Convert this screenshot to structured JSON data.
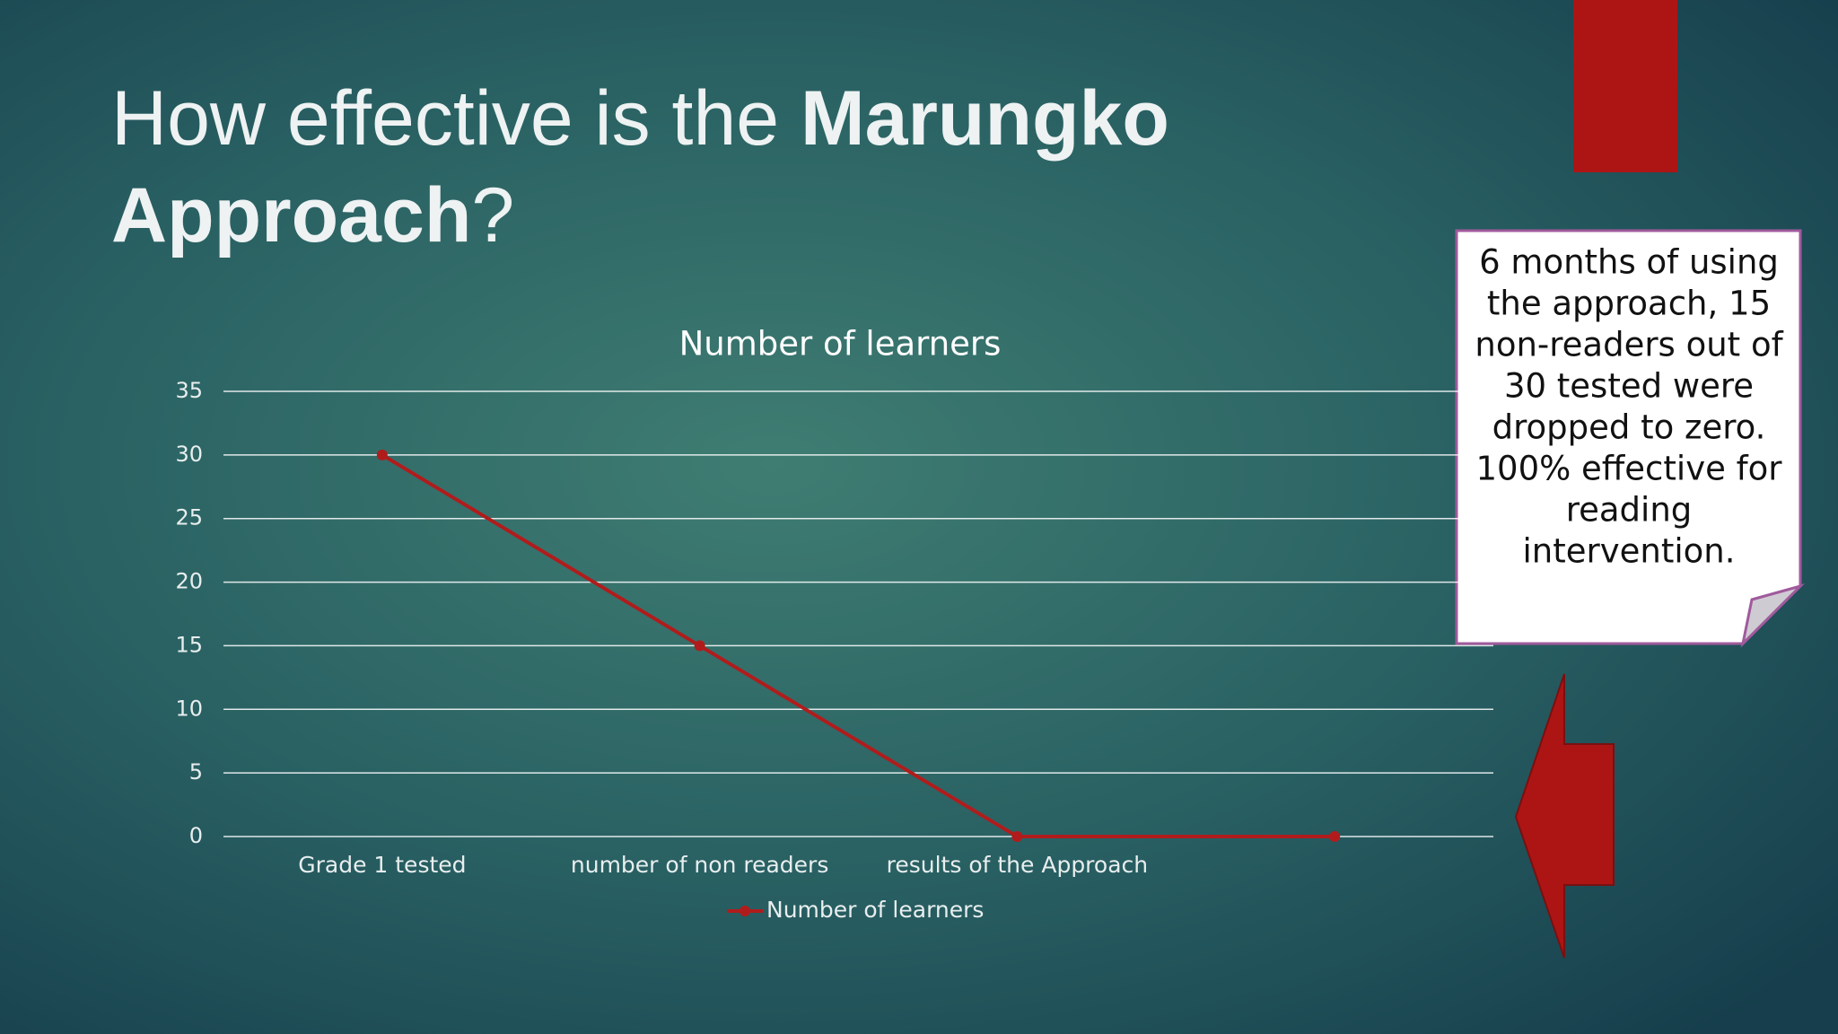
{
  "slide": {
    "title_lines": [
      [
        {
          "text": "How effective is the ",
          "bold": false
        },
        {
          "text": "Marungko",
          "bold": true
        }
      ],
      [
        {
          "text": "Approach",
          "bold": true
        },
        {
          "text": "?",
          "bold": false
        }
      ]
    ],
    "callout_lines": [
      "6 months of using",
      "the approach, 15",
      "non-readers out of",
      "30 tested were",
      "dropped to zero.",
      "100% effective for",
      "reading",
      "intervention."
    ]
  },
  "chart_data": {
    "type": "line",
    "title": "Number of learners",
    "categories": [
      "Grade 1 tested",
      "number of non readers",
      "results of the Approach",
      null
    ],
    "series": [
      {
        "name": "Number of learners",
        "color": "#b01c1c",
        "values": [
          30,
          15,
          0,
          0
        ]
      }
    ],
    "ylim": [
      0,
      35
    ],
    "yticks": [
      0,
      5,
      10,
      15,
      20,
      25,
      30,
      35
    ],
    "grid": true,
    "legend": "bottom"
  }
}
